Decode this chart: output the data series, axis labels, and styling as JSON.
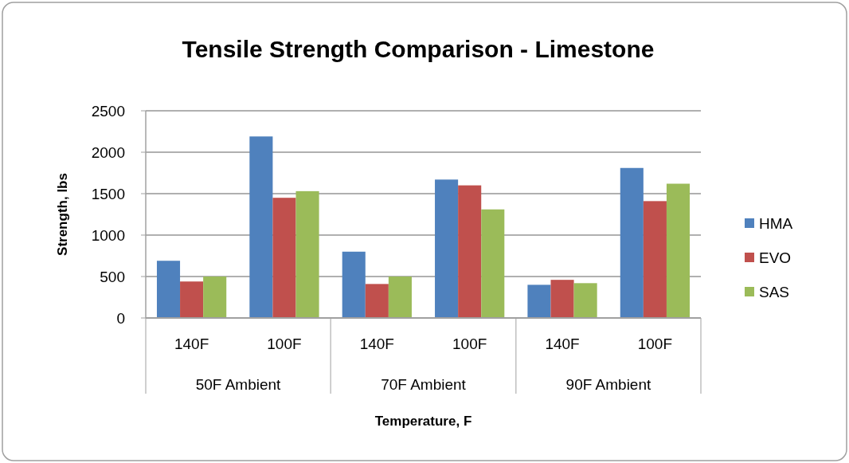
{
  "chart_data": {
    "type": "bar",
    "title": "Tensile Strength Comparison - Limestone",
    "xlabel": "Temperature, F",
    "ylabel": "Strength, lbs",
    "categories": [
      "140F",
      "100F",
      "140F",
      "100F",
      "140F",
      "100F"
    ],
    "annotations": [
      "50F Ambient",
      "70F Ambient",
      "90F Ambient"
    ],
    "series": [
      {
        "name": "HMA",
        "color": "#4f81bd",
        "values": [
          690,
          2190,
          800,
          1670,
          400,
          1810
        ]
      },
      {
        "name": "EVO",
        "color": "#c0504d",
        "values": [
          440,
          1450,
          410,
          1600,
          460,
          1410
        ]
      },
      {
        "name": "SAS",
        "color": "#9bbb59",
        "values": [
          500,
          1530,
          500,
          1310,
          420,
          1620
        ]
      }
    ],
    "ylim": [
      0,
      2500
    ],
    "yticks": [
      0,
      500,
      1000,
      1500,
      2000,
      2500
    ],
    "grid": "y",
    "legend": "right"
  }
}
